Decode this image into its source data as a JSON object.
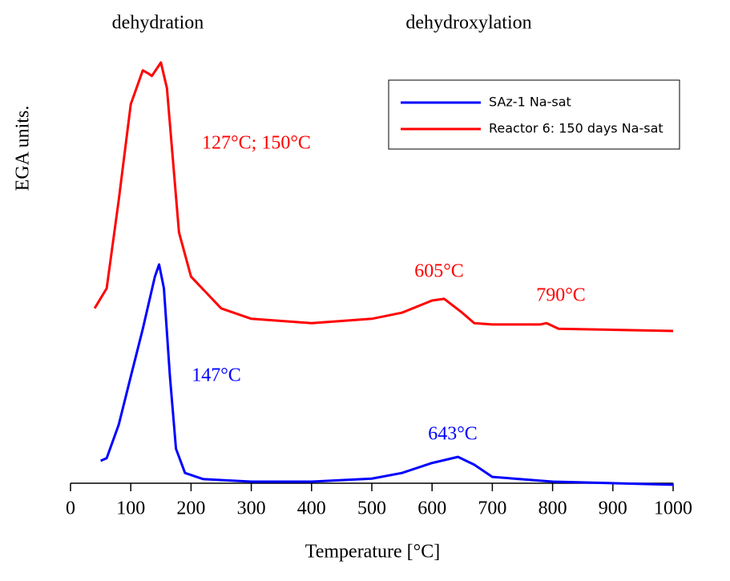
{
  "chart_data": {
    "type": "line",
    "annotations": [
      "dehydration",
      "dehydroxylation",
      "127°C; 150°C",
      "605°C",
      "790°C",
      "147°C",
      "643°C"
    ],
    "y_label": "EGA units.",
    "x_label": "Temperature [°C]",
    "xlim": [
      0,
      1000
    ],
    "xticks": [
      0,
      100,
      200,
      300,
      400,
      500,
      600,
      700,
      800,
      900,
      1000
    ],
    "ylim": [
      0,
      100
    ],
    "series": [
      {
        "name": "SAz-1 Na-sat",
        "color": "#0000ff",
        "x": [
          50,
          60,
          80,
          100,
          120,
          140,
          147,
          155,
          165,
          175,
          190,
          220,
          300,
          400,
          500,
          550,
          600,
          643,
          670,
          700,
          800,
          1000
        ],
        "values": [
          5.9,
          6.5,
          14.2,
          25.3,
          36.3,
          48.3,
          51.1,
          45.6,
          25.3,
          8.7,
          3.1,
          1.7,
          1.1,
          1.1,
          1.8,
          3.1,
          5.4,
          6.8,
          5.0,
          2.2,
          1.1,
          0.4
        ]
      },
      {
        "name": "Reactor 6: 150 days Na-sat",
        "color": "#ff0000",
        "x": [
          40,
          60,
          80,
          100,
          120,
          130,
          135,
          150,
          160,
          170,
          180,
          200,
          250,
          300,
          400,
          500,
          550,
          600,
          620,
          650,
          670,
          700,
          780,
          790,
          810,
          1000
        ],
        "values": [
          41.0,
          45.6,
          65.9,
          88.0,
          95.8,
          95.0,
          94.5,
          97.6,
          91.7,
          75.1,
          58.5,
          48.3,
          41.0,
          38.6,
          37.6,
          38.6,
          40.0,
          42.8,
          43.2,
          40.0,
          37.6,
          37.3,
          37.3,
          37.6,
          36.3,
          35.8
        ]
      }
    ]
  }
}
